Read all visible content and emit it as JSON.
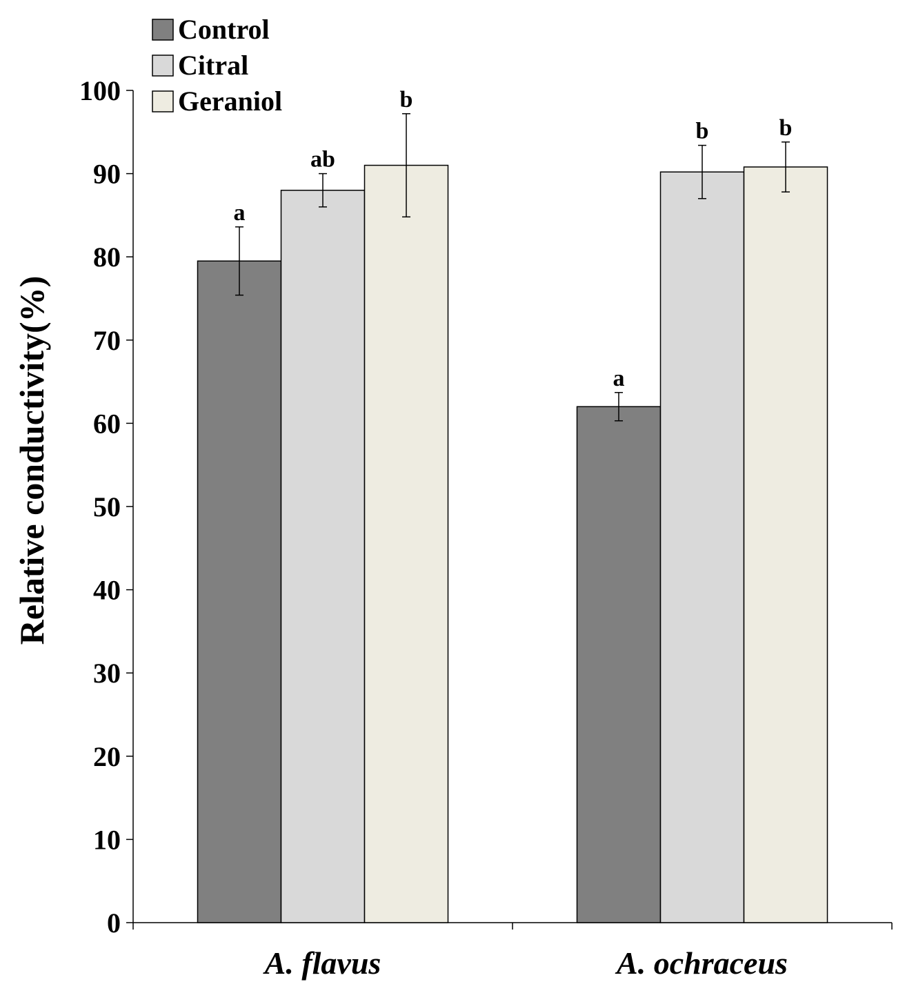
{
  "chart_data": {
    "type": "bar",
    "title": "",
    "xlabel": "",
    "ylabel": "Relative conductivity(%)",
    "ylim": [
      0,
      100
    ],
    "yticks": [
      0,
      10,
      20,
      30,
      40,
      50,
      60,
      70,
      80,
      90,
      100
    ],
    "categories": [
      "A. flavus",
      "A. ochraceus"
    ],
    "legend_position": "top-left",
    "series": [
      {
        "name": "Control",
        "color": "#808080",
        "values": [
          79.5,
          62.0
        ],
        "errors": [
          4.1,
          1.7
        ],
        "significance": [
          "a",
          "a"
        ]
      },
      {
        "name": "Citral",
        "color": "#d9d9d9",
        "values": [
          88.0,
          90.2
        ],
        "errors": [
          2.0,
          3.2
        ],
        "significance": [
          "ab",
          "b"
        ]
      },
      {
        "name": "Geraniol",
        "color": "#eeece1",
        "values": [
          91.0,
          90.8
        ],
        "errors": [
          6.2,
          3.0
        ],
        "significance": [
          "b",
          "b"
        ]
      }
    ]
  }
}
